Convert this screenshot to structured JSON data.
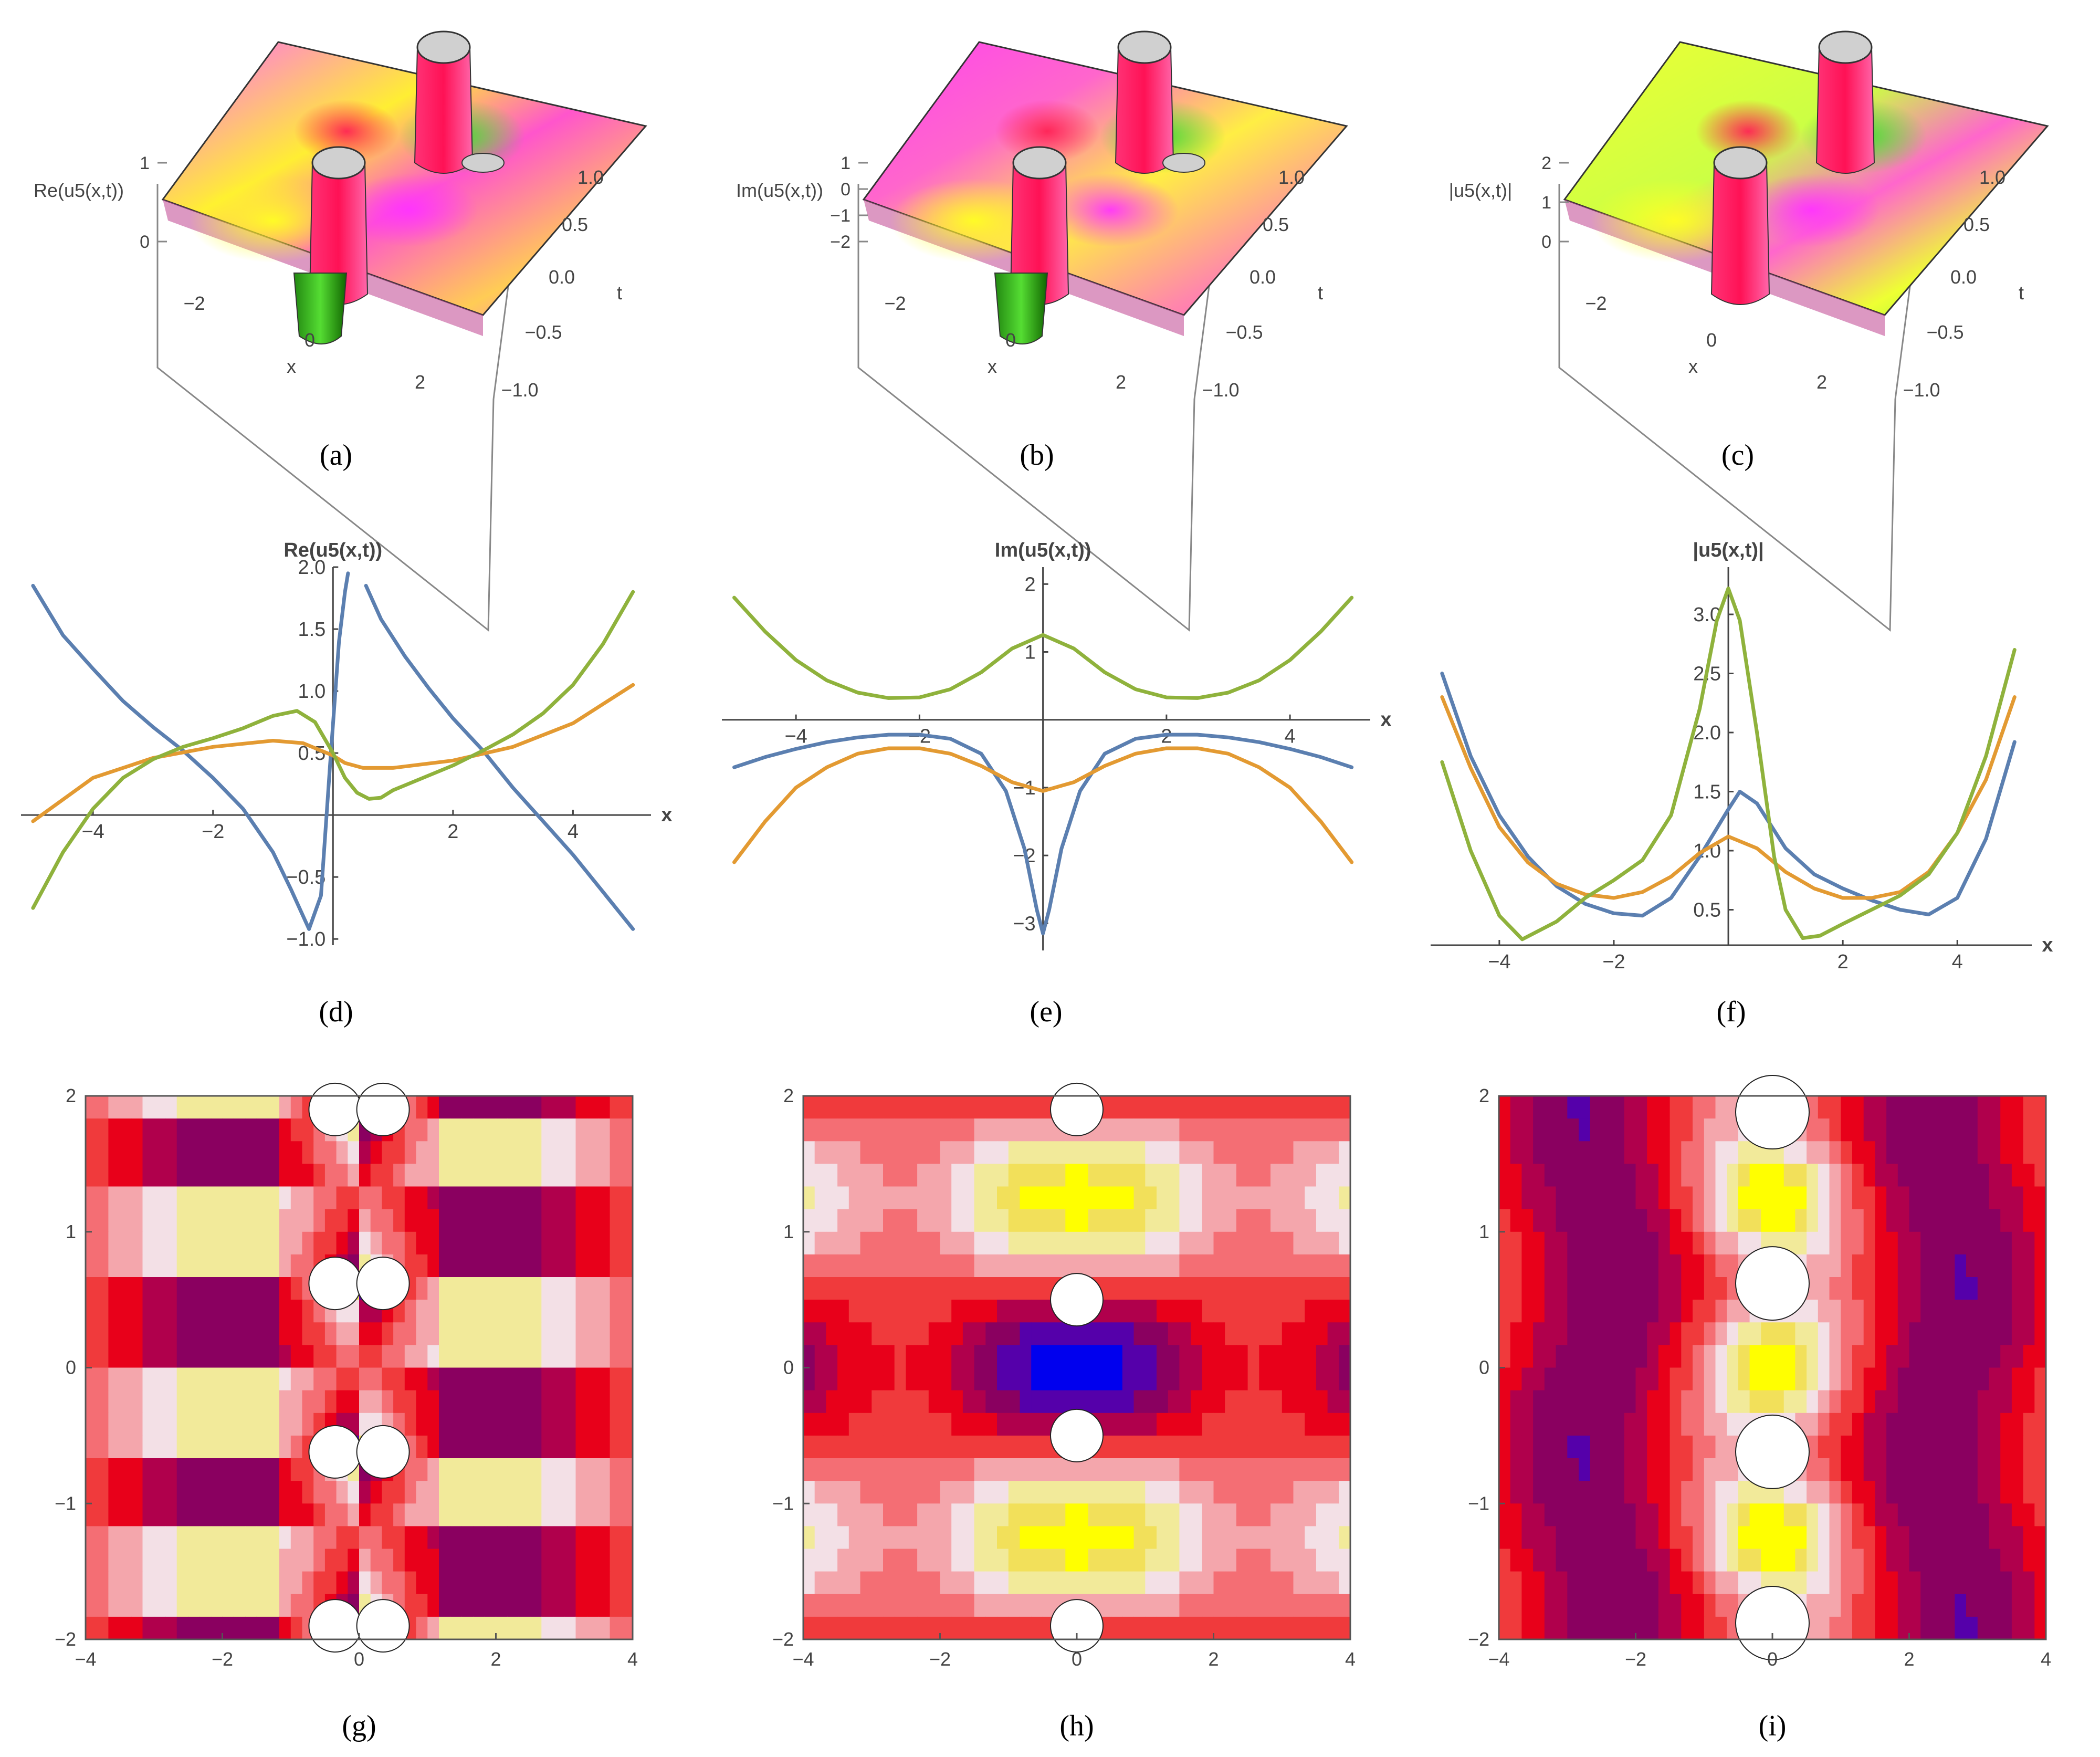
{
  "colors": {
    "real": "#5b7fb0",
    "imag": "#e39a32",
    "abs": "#8fb23c",
    "axis": "#444444"
  },
  "surface_panels": [
    {
      "id": "a",
      "caption": "(a)",
      "zlabel": "Re(u5(x,t))",
      "xlabel": "x",
      "tlabel": "t",
      "zticks": [
        "1",
        "0"
      ],
      "xticks": [
        "−2",
        "0",
        "2"
      ],
      "tticks": [
        "1.0",
        "0.5",
        "0.0",
        "−0.5",
        "−1.0"
      ]
    },
    {
      "id": "b",
      "caption": "(b)",
      "zlabel": "Im(u5(x,t))",
      "xlabel": "x",
      "tlabel": "t",
      "zticks": [
        "1",
        "0",
        "−1",
        "−2"
      ],
      "xticks": [
        "−2",
        "0",
        "2"
      ],
      "tticks": [
        "1.0",
        "0.5",
        "0.0",
        "−0.5",
        "−1.0"
      ]
    },
    {
      "id": "c",
      "caption": "(c)",
      "zlabel": "|u5(x,t)|",
      "xlabel": "x",
      "tlabel": "t",
      "zticks": [
        "2",
        "1",
        "0"
      ],
      "xticks": [
        "−2",
        "0",
        "2"
      ],
      "tticks": [
        "1.0",
        "0.5",
        "0.0",
        "−0.5",
        "−1.0"
      ]
    }
  ],
  "chart_data": [
    {
      "id": "d",
      "type": "line",
      "caption": "(d)",
      "ylabel": "Re(u5(x,t))",
      "xlabel": "x",
      "xlim": [
        -5.2,
        5.3
      ],
      "ylim": [
        -1.05,
        2.0
      ],
      "xticks": [
        -4,
        -2,
        2,
        4
      ],
      "xtick_labels": [
        "−4",
        "−2",
        "2",
        "4"
      ],
      "yticks": [
        -1.0,
        -0.5,
        0.5,
        1.0,
        1.5,
        2.0
      ],
      "ytick_labels": [
        "−1.0",
        "−0.5",
        "0.5",
        "1.0",
        "1.5",
        "2.0"
      ],
      "series": [
        {
          "color": "#5b7fb0",
          "x": [
            -5.0,
            -4.5,
            -4.0,
            -3.5,
            -3.0,
            -2.5,
            -2.0,
            -1.5,
            -1.0,
            -0.7,
            -0.4,
            -0.2,
            -0.05,
            0.1,
            0.2,
            0.25
          ],
          "y": [
            1.85,
            1.45,
            1.18,
            0.92,
            0.71,
            0.52,
            0.3,
            0.05,
            -0.3,
            -0.6,
            -0.92,
            -0.65,
            0.4,
            1.4,
            1.8,
            1.95
          ]
        },
        {
          "color": "#5b7fb0",
          "x": [
            0.55,
            0.8,
            1.2,
            1.6,
            2.0,
            2.5,
            3.0,
            3.5,
            4.0,
            4.5,
            5.0
          ],
          "y": [
            1.85,
            1.58,
            1.28,
            1.02,
            0.78,
            0.52,
            0.22,
            -0.05,
            -0.32,
            -0.62,
            -0.92
          ]
        },
        {
          "color": "#e39a32",
          "x": [
            -5.0,
            -4.0,
            -3.0,
            -2.0,
            -1.0,
            -0.5,
            -0.2,
            0.0,
            0.2,
            0.5,
            1.0,
            2.0,
            3.0,
            4.0,
            5.0
          ],
          "y": [
            -0.05,
            0.3,
            0.46,
            0.55,
            0.6,
            0.58,
            0.52,
            0.48,
            0.42,
            0.38,
            0.38,
            0.44,
            0.55,
            0.74,
            1.05
          ]
        },
        {
          "color": "#8fb23c",
          "x": [
            -5.0,
            -4.5,
            -4.0,
            -3.5,
            -3.0,
            -2.5,
            -2.0,
            -1.5,
            -1.0,
            -0.6,
            -0.3,
            0.0,
            0.2,
            0.4,
            0.6,
            0.8,
            1.0,
            1.5,
            2.0,
            2.5,
            3.0,
            3.5,
            4.0,
            4.5,
            5.0
          ],
          "y": [
            -0.75,
            -0.3,
            0.05,
            0.3,
            0.45,
            0.55,
            0.62,
            0.7,
            0.8,
            0.84,
            0.75,
            0.5,
            0.3,
            0.18,
            0.13,
            0.14,
            0.2,
            0.3,
            0.4,
            0.52,
            0.65,
            0.82,
            1.05,
            1.38,
            1.8
          ]
        }
      ]
    },
    {
      "id": "e",
      "type": "line",
      "caption": "(e)",
      "ylabel": "Im(u5(x,t))",
      "xlabel": "x",
      "xlim": [
        -5.2,
        5.3
      ],
      "ylim": [
        -3.4,
        2.25
      ],
      "xticks": [
        -4,
        -2,
        2,
        4
      ],
      "xtick_labels": [
        "−4",
        "−2",
        "2",
        "4"
      ],
      "yticks": [
        -3,
        -2,
        -1,
        1,
        2
      ],
      "ytick_labels": [
        "−3",
        "−2",
        "−1",
        "1",
        "2"
      ],
      "series": [
        {
          "color": "#5b7fb0",
          "x": [
            -5.0,
            -4.5,
            -4.0,
            -3.5,
            -3.0,
            -2.5,
            -2.0,
            -1.5,
            -1.0,
            -0.6,
            -0.3,
            -0.1,
            0.0,
            0.1,
            0.3,
            0.6,
            1.0,
            1.5,
            2.0,
            2.5,
            3.0,
            3.5,
            4.0,
            4.5,
            5.0
          ],
          "y": [
            -0.7,
            -0.55,
            -0.43,
            -0.33,
            -0.26,
            -0.22,
            -0.22,
            -0.28,
            -0.5,
            -1.05,
            -1.9,
            -2.8,
            -3.15,
            -2.8,
            -1.9,
            -1.05,
            -0.5,
            -0.28,
            -0.22,
            -0.22,
            -0.26,
            -0.33,
            -0.43,
            -0.55,
            -0.7
          ]
        },
        {
          "color": "#e39a32",
          "x": [
            -5.0,
            -4.5,
            -4.0,
            -3.5,
            -3.0,
            -2.5,
            -2.0,
            -1.5,
            -1.0,
            -0.5,
            0.0,
            0.5,
            1.0,
            1.5,
            2.0,
            2.5,
            3.0,
            3.5,
            4.0,
            4.5,
            5.0
          ],
          "y": [
            -2.1,
            -1.5,
            -1.0,
            -0.7,
            -0.5,
            -0.42,
            -0.42,
            -0.5,
            -0.68,
            -0.92,
            -1.05,
            -0.92,
            -0.68,
            -0.5,
            -0.42,
            -0.42,
            -0.5,
            -0.7,
            -1.0,
            -1.5,
            -2.1
          ]
        },
        {
          "color": "#8fb23c",
          "x": [
            -5.0,
            -4.5,
            -4.0,
            -3.5,
            -3.0,
            -2.5,
            -2.0,
            -1.5,
            -1.0,
            -0.5,
            0.0,
            0.5,
            1.0,
            1.5,
            2.0,
            2.5,
            3.0,
            3.5,
            4.0,
            4.5,
            5.0
          ],
          "y": [
            1.8,
            1.3,
            0.88,
            0.58,
            0.4,
            0.32,
            0.33,
            0.45,
            0.7,
            1.05,
            1.25,
            1.05,
            0.7,
            0.45,
            0.33,
            0.32,
            0.4,
            0.58,
            0.88,
            1.3,
            1.8
          ]
        }
      ]
    },
    {
      "id": "f",
      "type": "line",
      "caption": "(f)",
      "ylabel": "|u5(x,t)|",
      "xlabel": "x",
      "xlim": [
        -5.2,
        5.3
      ],
      "ylim": [
        0.2,
        3.4
      ],
      "xticks": [
        -4,
        -2,
        2,
        4
      ],
      "xtick_labels": [
        "−4",
        "−2",
        "2",
        "4"
      ],
      "yticks": [
        0.5,
        1.0,
        1.5,
        2.0,
        2.5,
        3.0
      ],
      "ytick_labels": [
        "0.5",
        "1.0",
        "1.5",
        "2.0",
        "2.5",
        "3.0"
      ],
      "series": [
        {
          "color": "#5b7fb0",
          "x": [
            -5.0,
            -4.5,
            -4.0,
            -3.5,
            -3.0,
            -2.5,
            -2.0,
            -1.5,
            -1.0,
            -0.5,
            0.0,
            0.2,
            0.5,
            1.0,
            1.5,
            2.0,
            2.5,
            3.0,
            3.5,
            4.0,
            4.5,
            5.0
          ],
          "y": [
            2.5,
            1.8,
            1.3,
            0.95,
            0.7,
            0.55,
            0.47,
            0.45,
            0.6,
            0.95,
            1.35,
            1.5,
            1.4,
            1.02,
            0.8,
            0.68,
            0.58,
            0.5,
            0.46,
            0.6,
            1.1,
            1.92
          ]
        },
        {
          "color": "#e39a32",
          "x": [
            -5.0,
            -4.5,
            -4.0,
            -3.5,
            -3.0,
            -2.5,
            -2.0,
            -1.5,
            -1.0,
            -0.5,
            0.0,
            0.5,
            1.0,
            1.5,
            2.0,
            2.5,
            3.0,
            3.5,
            4.0,
            4.5,
            5.0
          ],
          "y": [
            2.3,
            1.7,
            1.2,
            0.9,
            0.72,
            0.63,
            0.6,
            0.65,
            0.78,
            0.98,
            1.12,
            1.02,
            0.82,
            0.68,
            0.6,
            0.6,
            0.65,
            0.82,
            1.15,
            1.6,
            2.3
          ]
        },
        {
          "color": "#8fb23c",
          "x": [
            -5.0,
            -4.5,
            -4.0,
            -3.6,
            -3.0,
            -2.5,
            -2.0,
            -1.5,
            -1.0,
            -0.5,
            -0.2,
            0.0,
            0.2,
            0.5,
            0.8,
            1.0,
            1.3,
            1.6,
            2.0,
            2.5,
            3.0,
            3.5,
            4.0,
            4.5,
            5.0
          ],
          "y": [
            1.75,
            1.0,
            0.45,
            0.25,
            0.4,
            0.6,
            0.75,
            0.92,
            1.3,
            2.2,
            2.95,
            3.22,
            2.95,
            2.0,
            0.95,
            0.5,
            0.26,
            0.28,
            0.38,
            0.5,
            0.62,
            0.8,
            1.15,
            1.8,
            2.7
          ]
        }
      ]
    },
    {
      "id": "g",
      "type": "heatmap",
      "caption": "(g)",
      "field": "real",
      "xlim": [
        -4,
        4
      ],
      "ylim": [
        -2,
        2
      ],
      "xticks": [
        -4,
        -2,
        0,
        2,
        4
      ],
      "xtick_labels": [
        "−4",
        "−2",
        "0",
        "2",
        "4"
      ],
      "yticks": [
        -2,
        -1,
        0,
        1,
        2
      ],
      "ytick_labels": [
        "−2",
        "−1",
        "0",
        "1",
        "2"
      ]
    },
    {
      "id": "h",
      "type": "heatmap",
      "caption": "(h)",
      "field": "imag",
      "xlim": [
        -4,
        4
      ],
      "ylim": [
        -2,
        2
      ],
      "xticks": [
        -4,
        -2,
        0,
        2,
        4
      ],
      "xtick_labels": [
        "−4",
        "−2",
        "0",
        "2",
        "4"
      ],
      "yticks": [
        -2,
        -1,
        0,
        1,
        2
      ],
      "ytick_labels": [
        "−2",
        "−1",
        "0",
        "1",
        "2"
      ]
    },
    {
      "id": "i",
      "type": "heatmap",
      "caption": "(i)",
      "field": "abs",
      "xlim": [
        -4,
        4
      ],
      "ylim": [
        -2,
        2
      ],
      "xticks": [
        -4,
        -2,
        0,
        2,
        4
      ],
      "xtick_labels": [
        "−4",
        "−2",
        "0",
        "2",
        "4"
      ],
      "yticks": [
        -2,
        -1,
        0,
        1,
        2
      ],
      "ytick_labels": [
        "−2",
        "−1",
        "0",
        "1",
        "2"
      ]
    }
  ]
}
